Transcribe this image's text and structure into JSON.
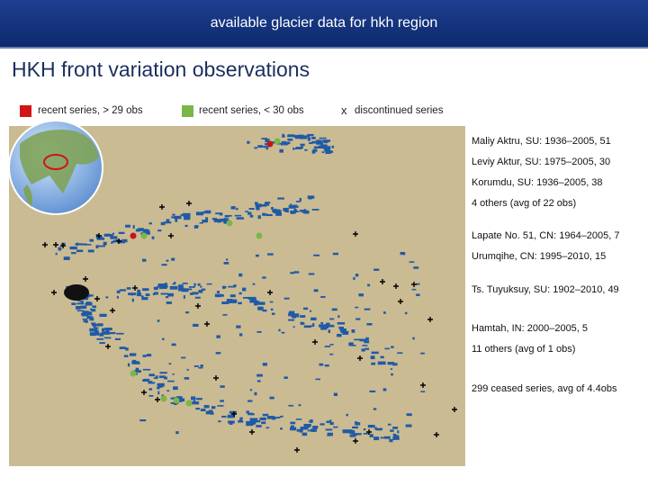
{
  "header": {
    "title": "available glacier data for hkh region"
  },
  "heading": "HKH front variation observations",
  "legend": [
    {
      "label": "recent  series, > 29 obs"
    },
    {
      "label": "recent  series, < 30 obs"
    },
    {
      "symbol": "x",
      "label": "discontinued series"
    }
  ],
  "annotations": [
    "Maliy Aktru, SU: 1936–2005, 51",
    "Leviy Aktur, SU: 1975–2005, 30",
    "Korumdu, SU: 1936–2005, 38",
    "4 others (avg of 22 obs)",
    "Lapate No. 51, CN: 1964–2005, 7",
    "Urumqihe, CN: 1995–2010, 15",
    "Ts. Tuyuksuy, SU: 1902–2010, 49",
    "Hamtah, IN: 2000–2005, 5",
    "11 others (avg of 1 obs)",
    "299 ceased series, avg of 4.4obs"
  ]
}
